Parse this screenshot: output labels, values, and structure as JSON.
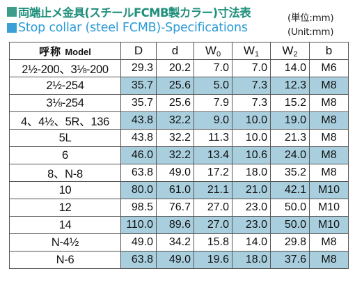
{
  "header": {
    "title_jp": "両端止メ金具(スチールFCMB製カラー)寸法表",
    "title_en": "Stop collar (steel FCMB)-Specifications",
    "unit_jp": "(単位:mm)",
    "unit_en": "(Unit:mm)"
  },
  "table": {
    "col_model_jp": "呼称",
    "col_model_en": "Model",
    "col_D": "D",
    "col_d": "d",
    "col_W0_base": "W",
    "col_W0_sub": "0",
    "col_W1_base": "W",
    "col_W1_sub": "1",
    "col_W2_base": "W",
    "col_W2_sub": "2",
    "col_b": "b",
    "rows": [
      {
        "model": "2½-200、3⅛-200",
        "D": "29.3",
        "d": "20.2",
        "W0": "7.0",
        "W1": "7.0",
        "W2": "14.0",
        "b": "M6"
      },
      {
        "model": "2½-254",
        "D": "35.7",
        "d": "25.6",
        "W0": "5.0",
        "W1": "7.3",
        "W2": "12.3",
        "b": "M8"
      },
      {
        "model": "3⅛-254",
        "D": "35.7",
        "d": "25.6",
        "W0": "7.9",
        "W1": "7.3",
        "W2": "15.2",
        "b": "M8"
      },
      {
        "model": "4、4½、5R、136",
        "D": "43.8",
        "d": "32.2",
        "W0": "9.0",
        "W1": "10.0",
        "W2": "19.0",
        "b": "M8"
      },
      {
        "model": "5L",
        "D": "43.8",
        "d": "32.2",
        "W0": "11.3",
        "W1": "10.0",
        "W2": "21.3",
        "b": "M8"
      },
      {
        "model": "6",
        "D": "46.0",
        "d": "32.2",
        "W0": "13.4",
        "W1": "10.6",
        "W2": "24.0",
        "b": "M8"
      },
      {
        "model": "8、N-8",
        "D": "63.8",
        "d": "49.0",
        "W0": "17.2",
        "W1": "18.0",
        "W2": "35.2",
        "b": "M8"
      },
      {
        "model": "10",
        "D": "80.0",
        "d": "61.0",
        "W0": "21.1",
        "W1": "21.0",
        "W2": "42.1",
        "b": "M10"
      },
      {
        "model": "12",
        "D": "98.5",
        "d": "76.7",
        "W0": "27.0",
        "W1": "23.0",
        "W2": "50.0",
        "b": "M10"
      },
      {
        "model": "14",
        "D": "110.0",
        "d": "89.6",
        "W0": "27.0",
        "W1": "23.0",
        "W2": "50.0",
        "b": "M10"
      },
      {
        "model": "N-4½",
        "D": "49.0",
        "d": "34.2",
        "W0": "15.8",
        "W1": "14.0",
        "W2": "29.8",
        "b": "M8"
      },
      {
        "model": "N-6",
        "D": "63.8",
        "d": "49.0",
        "W0": "19.6",
        "W1": "18.0",
        "W2": "37.6",
        "b": "M8"
      }
    ]
  },
  "colors": {
    "accent_green": "#3e9d8a",
    "accent_blue": "#3aa0d6",
    "row_shade": "#a9cfdf"
  }
}
